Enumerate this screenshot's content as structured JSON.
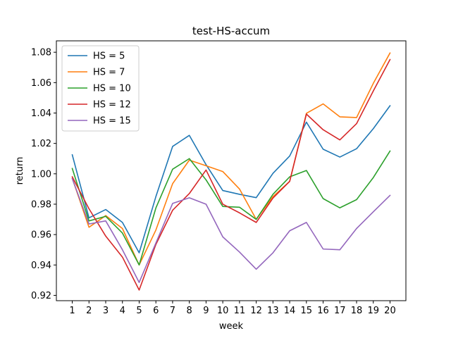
{
  "chart_data": {
    "type": "line",
    "title": "test-HS-accum",
    "xlabel": "week",
    "ylabel": "return",
    "x": [
      1,
      2,
      3,
      4,
      5,
      6,
      7,
      8,
      9,
      10,
      11,
      12,
      13,
      14,
      15,
      16,
      17,
      18,
      19,
      20
    ],
    "xlim": [
      0.05,
      20.95
    ],
    "ylim": [
      0.9165,
      1.0875
    ],
    "yticks": [
      0.92,
      0.94,
      0.96,
      0.98,
      1.0,
      1.02,
      1.04,
      1.06,
      1.08
    ],
    "ytick_labels": [
      "0.92",
      "0.94",
      "0.96",
      "0.98",
      "1.00",
      "1.02",
      "1.04",
      "1.06",
      "1.08"
    ],
    "xtick_labels": [
      "1",
      "2",
      "3",
      "4",
      "5",
      "6",
      "7",
      "8",
      "9",
      "10",
      "11",
      "12",
      "13",
      "14",
      "15",
      "16",
      "17",
      "18",
      "19",
      "20"
    ],
    "grid": false,
    "legend_position": "upper-left",
    "series": [
      {
        "name": "HS = 5",
        "color": "#1f77b4",
        "values": [
          1.0125,
          0.971,
          0.9765,
          0.968,
          0.948,
          0.985,
          1.018,
          1.0253,
          1.006,
          0.989,
          0.9865,
          0.9843,
          1.0003,
          1.0117,
          1.034,
          1.0162,
          1.011,
          1.0165,
          1.0297,
          1.0448
        ]
      },
      {
        "name": "HS = 7",
        "color": "#ff7f0e",
        "values": [
          0.997,
          0.9648,
          0.9725,
          0.964,
          0.94,
          0.963,
          0.9935,
          1.009,
          1.0053,
          1.0015,
          0.99,
          0.97,
          0.985,
          0.995,
          1.0398,
          1.046,
          1.0375,
          1.037,
          1.0595,
          1.0795
        ]
      },
      {
        "name": "HS = 10",
        "color": "#2ca02c",
        "values": [
          1.0035,
          0.969,
          0.972,
          0.961,
          0.94,
          0.9775,
          1.003,
          1.01,
          0.996,
          0.9785,
          0.978,
          0.97,
          0.9865,
          0.998,
          1.0022,
          0.9837,
          0.9776,
          0.983,
          0.9975,
          1.015
        ]
      },
      {
        "name": "HS = 12",
        "color": "#d62728",
        "values": [
          0.998,
          0.977,
          0.959,
          0.9452,
          0.9235,
          0.9535,
          0.976,
          0.987,
          1.0025,
          0.98,
          0.9743,
          0.968,
          0.984,
          0.995,
          1.0393,
          1.029,
          1.0223,
          1.033,
          1.0545,
          1.0752
        ]
      },
      {
        "name": "HS = 15",
        "color": "#9467bd",
        "values": [
          0.9968,
          0.967,
          0.969,
          0.95,
          0.9285,
          0.9545,
          0.9805,
          0.9842,
          0.98,
          0.9585,
          0.9485,
          0.9372,
          0.948,
          0.9625,
          0.968,
          0.9505,
          0.95,
          0.964,
          0.975,
          0.9858
        ]
      }
    ]
  }
}
